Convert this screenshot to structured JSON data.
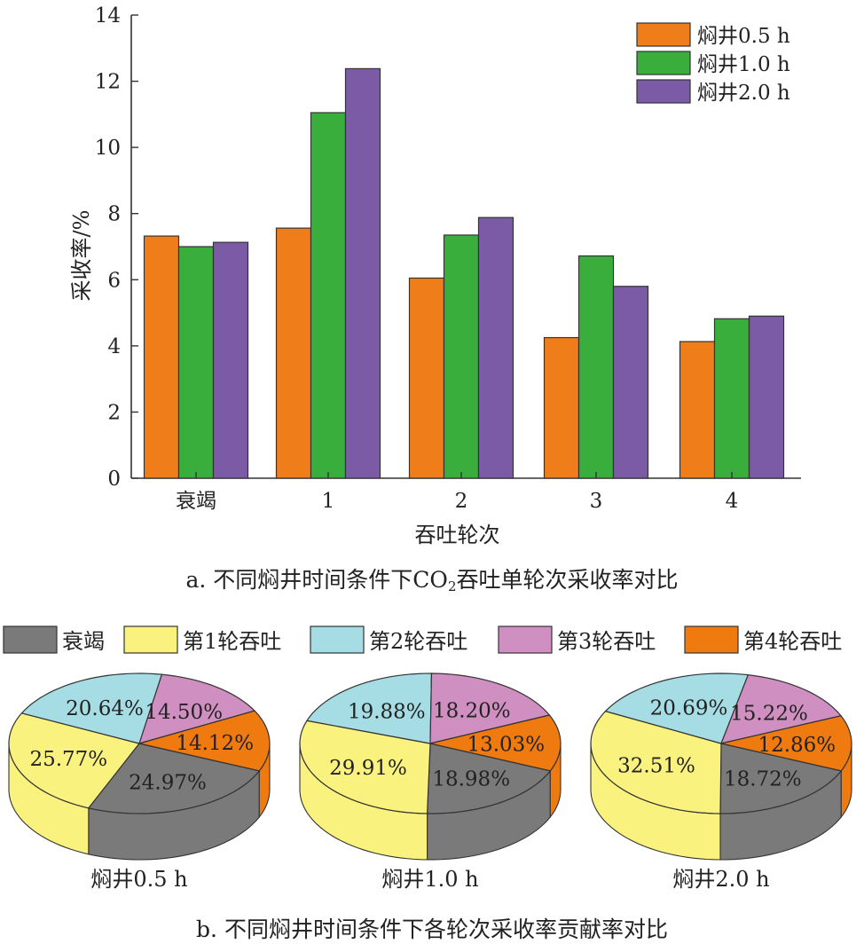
{
  "captions": {
    "a_prefix": "a. 不同焖井时间条件下CO",
    "a_sub": "2",
    "a_suffix": "吞吐单轮次采收率对比",
    "b": "b. 不同焖井时间条件下各轮次采收率贡献率对比"
  },
  "chart_data": [
    {
      "type": "bar",
      "title": "",
      "xlabel": "吞吐轮次",
      "ylabel": "采收率/%",
      "categories": [
        "衰竭",
        "1",
        "2",
        "3",
        "4"
      ],
      "ylim": [
        0,
        14
      ],
      "yticks": [
        0,
        2,
        4,
        6,
        8,
        10,
        12,
        14
      ],
      "legend_position": "top-right",
      "grid": false,
      "series": [
        {
          "name": "焖井0.5 h",
          "color": "#ef7d1a",
          "values": [
            7.32,
            7.56,
            6.05,
            4.25,
            4.13
          ]
        },
        {
          "name": "焖井1.0 h",
          "color": "#3aae3c",
          "values": [
            7.0,
            11.05,
            7.35,
            6.72,
            4.82
          ]
        },
        {
          "name": "焖井2.0 h",
          "color": "#7b5aa6",
          "values": [
            7.13,
            12.38,
            7.88,
            5.8,
            4.9
          ]
        }
      ]
    },
    {
      "type": "pie",
      "style": "3d",
      "legend_position": "top",
      "categories": [
        "衰竭",
        "第1轮吞吐",
        "第2轮吞吐",
        "第3轮吞吐",
        "第4轮吞吐"
      ],
      "colors": [
        "#7a7a7a",
        "#faf27f",
        "#a6dde4",
        "#cf8fc0",
        "#ee7a10"
      ],
      "side_colors": [
        "#555555",
        "#d9d060",
        "#82bcc4",
        "#ab6d9e",
        "#c45f05"
      ],
      "pies": [
        {
          "label": "焖井0.5 h",
          "values": [
            24.97,
            25.77,
            20.64,
            14.5,
            14.12
          ],
          "value_labels": [
            "24.97%",
            "25.77%",
            "20.64%",
            "14.50%",
            "14.12%"
          ]
        },
        {
          "label": "焖井1.0 h",
          "values": [
            18.98,
            29.91,
            19.88,
            18.2,
            13.03
          ],
          "value_labels": [
            "18.98%",
            "29.91%",
            "19.88%",
            "18.20%",
            "13.03%"
          ]
        },
        {
          "label": "焖井2.0 h",
          "values": [
            18.72,
            32.51,
            20.69,
            15.22,
            12.86
          ],
          "value_labels": [
            "18.72%",
            "32.51%",
            "20.69%",
            "15.22%",
            "12.86%"
          ]
        }
      ]
    }
  ]
}
